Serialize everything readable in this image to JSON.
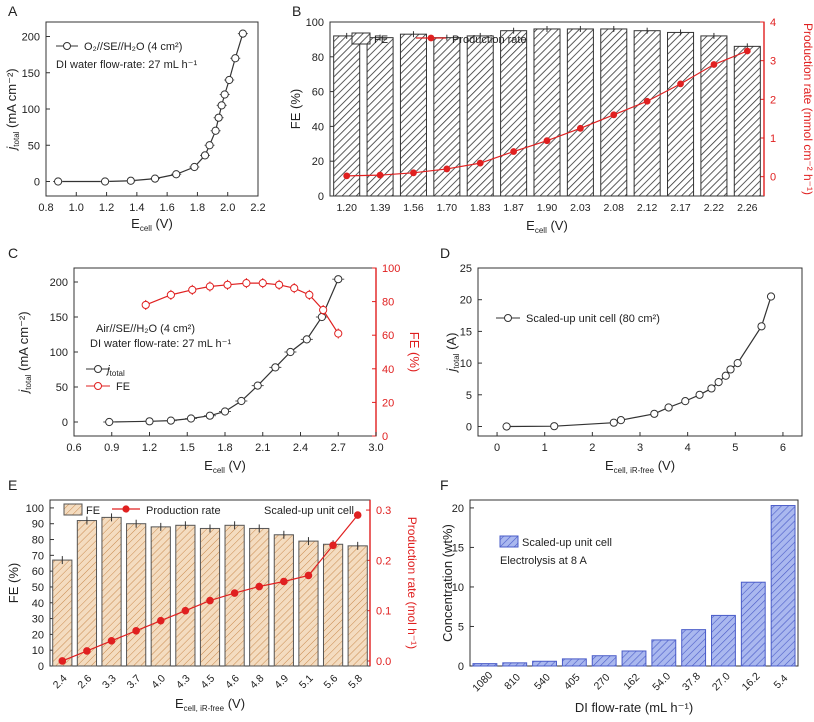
{
  "chart_data": [
    {
      "panel": "A",
      "type": "scatter",
      "xlabel": "E_cell (V)",
      "ylabel": "j_total (mA cm⁻²)",
      "xlim": [
        0.8,
        2.2
      ],
      "ylim": [
        -20,
        220
      ],
      "xticks": [
        0.8,
        1.0,
        1.2,
        1.4,
        1.6,
        1.8,
        2.0,
        2.2
      ],
      "yticks": [
        0,
        50,
        100,
        150,
        200
      ],
      "legend": "O₂//SE//H₂O (4 cm²)",
      "annotation": "DI water flow-rate: 27 mL h⁻¹",
      "x": [
        0.88,
        1.19,
        1.36,
        1.52,
        1.66,
        1.78,
        1.85,
        1.88,
        1.92,
        1.94,
        1.96,
        1.98,
        2.01,
        2.05,
        2.1
      ],
      "y": [
        0,
        0,
        1,
        4,
        10,
        20,
        36,
        50,
        70,
        88,
        105,
        120,
        140,
        170,
        204
      ]
    },
    {
      "panel": "B",
      "type": "bar",
      "xlabel": "E_cell (V)",
      "ylabel": "FE (%)",
      "y2label": "Production rate (mmol cm⁻² h⁻¹)",
      "ylim": [
        0,
        100
      ],
      "y2lim": [
        -0.5,
        4
      ],
      "yticks": [
        0,
        20,
        40,
        60,
        80,
        100
      ],
      "y2ticks": [
        0,
        1,
        2,
        3,
        4
      ],
      "categories": [
        "1.20",
        "1.39",
        "1.56",
        "1.70",
        "1.83",
        "1.87",
        "1.90",
        "2.03",
        "2.08",
        "2.12",
        "2.17",
        "2.22",
        "2.26"
      ],
      "series": [
        {
          "name": "FE",
          "values": [
            92,
            91,
            93,
            91,
            92,
            95,
            96,
            96,
            96,
            95,
            94,
            92,
            86
          ]
        },
        {
          "name": "Production rate",
          "values": [
            0.02,
            0.04,
            0.1,
            0.2,
            0.35,
            0.65,
            0.93,
            1.25,
            1.6,
            1.95,
            2.4,
            2.9,
            3.25
          ]
        }
      ]
    },
    {
      "panel": "C",
      "type": "scatter",
      "xlabel": "E_cell (V)",
      "ylabel": "j_total (mA cm⁻²)",
      "y2label": "FE (%)",
      "xlim": [
        0.6,
        3.0
      ],
      "ylim": [
        -20,
        220
      ],
      "y2lim": [
        0,
        100
      ],
      "xticks": [
        0.6,
        0.9,
        1.2,
        1.5,
        1.8,
        2.1,
        2.4,
        2.7,
        3.0
      ],
      "yticks": [
        0,
        50,
        100,
        150,
        200
      ],
      "y2ticks": [
        0,
        20,
        40,
        60,
        80,
        100
      ],
      "annotation": "Air//SE//H₂O (4 cm²) | DI water flow-rate: 27 mL h⁻¹",
      "series": [
        {
          "name": "j_total",
          "x": [
            0.88,
            1.2,
            1.37,
            1.53,
            1.68,
            1.8,
            1.93,
            2.06,
            2.2,
            2.32,
            2.45,
            2.57,
            2.7
          ],
          "y": [
            0,
            1,
            2,
            5,
            9,
            15,
            30,
            52,
            78,
            100,
            118,
            150,
            204
          ]
        },
        {
          "name": "FE",
          "x": [
            1.17,
            1.37,
            1.54,
            1.68,
            1.82,
            1.97,
            2.1,
            2.23,
            2.35,
            2.47,
            2.58,
            2.7
          ],
          "y": [
            78,
            84,
            87,
            89,
            90,
            91,
            91,
            90,
            88,
            84,
            75,
            61
          ]
        }
      ]
    },
    {
      "panel": "D",
      "type": "scatter",
      "xlabel": "E_cell, iR-free (V)",
      "ylabel": "j_total (A)",
      "xlim": [
        -0.4,
        6.4
      ],
      "ylim": [
        -1.5,
        25
      ],
      "xticks": [
        0,
        1,
        2,
        3,
        4,
        5,
        6
      ],
      "yticks": [
        0,
        5,
        10,
        15,
        20,
        25
      ],
      "legend": "Scaled-up unit cell (80 cm²)",
      "x": [
        0.2,
        1.2,
        2.45,
        2.6,
        3.3,
        3.6,
        3.95,
        4.25,
        4.5,
        4.65,
        4.8,
        4.9,
        5.05,
        5.55,
        5.75
      ],
      "y": [
        0,
        0.05,
        0.6,
        1.0,
        2.0,
        3.0,
        4.0,
        5.0,
        6.0,
        7.0,
        8.0,
        9.0,
        10.0,
        15.8,
        20.5
      ]
    },
    {
      "panel": "E",
      "type": "bar",
      "xlabel": "E_cell, iR-free (V)",
      "ylabel": "FE (%)",
      "y2label": "Production rate (mol h⁻¹)",
      "ylim": [
        0,
        105
      ],
      "y2lim": [
        -0.01,
        0.32
      ],
      "yticks": [
        0,
        10,
        20,
        30,
        40,
        50,
        60,
        70,
        80,
        90,
        100
      ],
      "y2ticks": [
        0,
        0.1,
        0.2,
        0.3
      ],
      "annotation": "Scaled-up unit cell",
      "categories": [
        "2.4",
        "2.6",
        "3.3",
        "3.7",
        "4.0",
        "4.3",
        "4.5",
        "4.6",
        "4.8",
        "4.9",
        "5.1",
        "5.6",
        "5.8"
      ],
      "series": [
        {
          "name": "FE",
          "values": [
            67,
            92,
            94,
            90,
            88,
            89,
            87,
            89,
            87,
            83,
            79,
            77,
            76
          ]
        },
        {
          "name": "Production rate",
          "values": [
            0.0,
            0.02,
            0.04,
            0.06,
            0.08,
            0.1,
            0.12,
            0.135,
            0.148,
            0.158,
            0.17,
            0.23,
            0.29
          ]
        }
      ]
    },
    {
      "panel": "F",
      "type": "bar",
      "xlabel": "DI flow-rate (mL h⁻¹)",
      "ylabel": "Concentration (wt%)",
      "ylim": [
        0,
        21
      ],
      "yticks": [
        0,
        5,
        10,
        15,
        20
      ],
      "annotation": "Electrolysis at 8 A",
      "categories": [
        "1080",
        "810",
        "540",
        "405",
        "270",
        "162",
        "54.0",
        "37.8",
        "27.0",
        "16.2",
        "5.4"
      ],
      "series": [
        {
          "name": "Scaled-up unit cell",
          "values": [
            0.3,
            0.4,
            0.6,
            0.9,
            1.3,
            1.9,
            3.3,
            4.6,
            6.4,
            10.6,
            20.3
          ]
        }
      ]
    }
  ]
}
